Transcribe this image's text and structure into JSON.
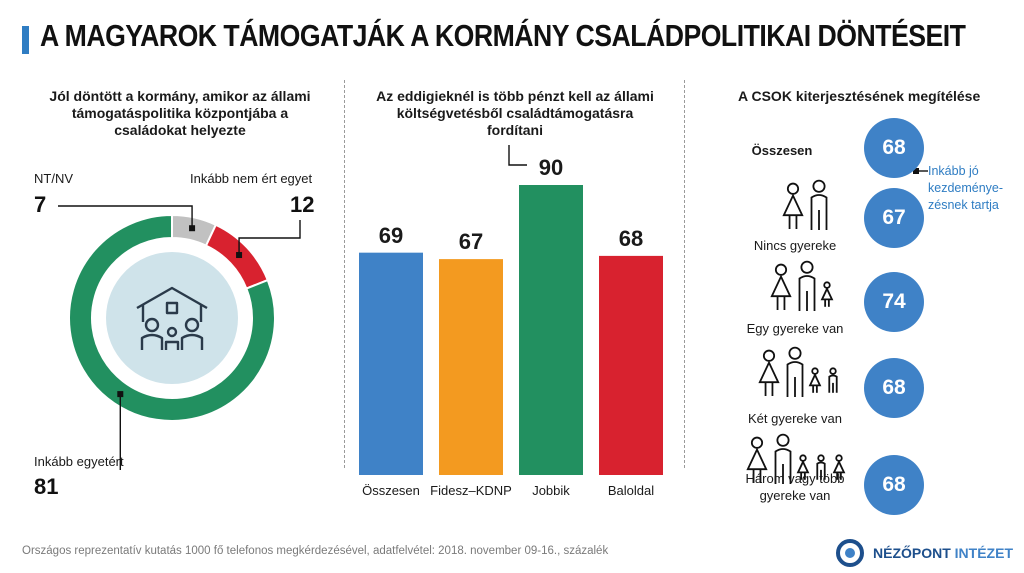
{
  "title": "A MAGYAROK TÁMOGATJÁK A KORMÁNY CSALÁDPOLITIKAI DÖNTÉSEIT",
  "colors": {
    "green": "#229060",
    "red": "#d8222f",
    "grey": "#c1c1c1",
    "blue": "#3f82c7",
    "orange": "#f39a20",
    "accent": "#2f7dc3"
  },
  "panel1": {
    "title_lines": [
      "Jól döntött a kormány, amikor az állami",
      "támogatáspolitika központjába a",
      "családokat helyezte"
    ],
    "icon": "family-house-icon"
  },
  "panel2": {
    "title_lines": [
      "Az eddigieknél is több pénzt kell az állami",
      "költségvetésből családtámogatásra",
      "fordítani"
    ]
  },
  "panel3": {
    "title": "A CSOK kiterjesztésének megítélése",
    "legend_lines": [
      "Inkább jó",
      "kezdeménye-",
      "zésnek tartja"
    ]
  },
  "chart_data": [
    {
      "type": "pie",
      "title": "Jól döntött a kormány, amikor az állami támogatáspolitika központjába a családokat helyezte",
      "categories": [
        "Inkább egyetért",
        "Inkább nem ért egyet",
        "NT/NV"
      ],
      "values": [
        81,
        12,
        7
      ],
      "colors": [
        "#229060",
        "#d8222f",
        "#c1c1c1"
      ]
    },
    {
      "type": "bar",
      "title": "Az eddigieknél is több pénzt kell az állami költségvetésből családtámogatásra fordítani",
      "categories": [
        "Összesen",
        "Fidesz–KDNP",
        "Jobbik",
        "Baloldal"
      ],
      "values": [
        69,
        67,
        90,
        68
      ],
      "colors": [
        "#3f82c7",
        "#f39a20",
        "#229060",
        "#d8222f"
      ],
      "ylim": [
        0,
        90
      ]
    },
    {
      "type": "table",
      "title": "A CSOK kiterjesztésének megítélése",
      "series_label": "Inkább jó kezdeményezésnek tartja",
      "rows": [
        {
          "label": "Összesen",
          "value": 68,
          "icon": ""
        },
        {
          "label": "Nincs gyereke",
          "value": 67,
          "icon": "couple-icon"
        },
        {
          "label": "Egy gyereke van",
          "value": 74,
          "icon": "family-one-child-icon"
        },
        {
          "label": "Két gyereke van",
          "value": 68,
          "icon": "family-two-children-icon"
        },
        {
          "label": "Három vagy több gyereke van",
          "value": 68,
          "icon": "family-three-children-icon"
        }
      ]
    }
  ],
  "footer": "Országos reprezentatív kutatás 1000 fő telefonos megkérdezésével, adatfelvétel: 2018. november 09-16., százalék",
  "logo": {
    "main": "NÉZŐPONT",
    "accent": "INTÉZET",
    "icon": "nezopont-logo-icon"
  }
}
